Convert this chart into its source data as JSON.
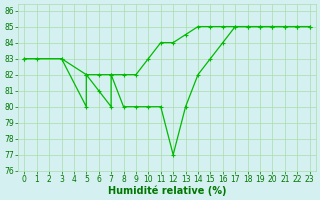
{
  "line1_x": [
    0,
    1,
    3,
    5,
    6,
    7,
    8,
    9,
    10,
    11,
    12,
    13,
    14,
    15,
    16,
    17,
    18,
    19,
    20,
    21,
    22,
    23
  ],
  "line1_y": [
    83,
    83,
    83,
    82,
    82,
    82,
    82,
    82,
    83,
    84,
    84,
    84.5,
    85,
    85,
    85,
    85,
    85,
    85,
    85,
    85,
    85,
    85
  ],
  "line2_x": [
    0,
    3,
    5,
    5,
    6,
    7,
    7,
    8,
    9,
    10,
    11,
    12,
    13,
    14,
    15,
    16,
    17,
    18,
    19,
    20,
    21,
    22,
    23
  ],
  "line2_y": [
    83,
    83,
    80,
    82,
    81,
    80,
    82,
    80,
    80,
    80,
    80,
    77,
    80,
    82,
    83,
    84,
    85,
    85,
    85,
    85,
    85,
    85,
    85
  ],
  "line_color": "#00bb00",
  "marker": "+",
  "bg_color": "#d4f0f0",
  "grid_color": "#aaddaa",
  "xlabel": "Humidité relative (%)",
  "xlabel_color": "#007700",
  "xlim": [
    -0.5,
    23.5
  ],
  "ylim": [
    76,
    86.4
  ],
  "yticks": [
    76,
    77,
    78,
    79,
    80,
    81,
    82,
    83,
    84,
    85,
    86
  ],
  "xticks": [
    0,
    1,
    2,
    3,
    4,
    5,
    6,
    7,
    8,
    9,
    10,
    11,
    12,
    13,
    14,
    15,
    16,
    17,
    18,
    19,
    20,
    21,
    22,
    23
  ],
  "tick_fontsize": 5.5,
  "xlabel_fontsize": 7,
  "tick_color": "#007700",
  "linewidth": 0.9,
  "markersize": 3,
  "markeredgewidth": 0.8
}
